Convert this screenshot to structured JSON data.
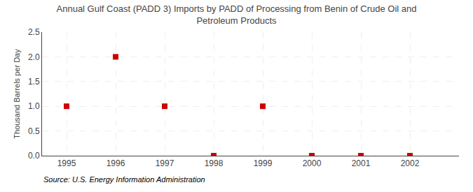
{
  "chart_data": {
    "type": "scatter",
    "title": "Annual Gulf Coast (PADD 3) Imports by PADD of Processing from Benin of Crude Oil and\nPetroleum Products",
    "y_label": "Thousand Barrels per Day",
    "annotations": [
      "Source: U.S. Energy Information Administration"
    ],
    "x": [
      1995,
      1996,
      1997,
      1998,
      1999,
      2000,
      2001,
      2002
    ],
    "values": [
      1.0,
      2.0,
      1.0,
      0.0,
      1.0,
      0.0,
      0.0,
      0.0
    ],
    "color": "#cc0000",
    "marker": "square",
    "xlim": [
      1994.5,
      2003.0
    ],
    "xticks": [
      1995,
      1996,
      1997,
      1998,
      1999,
      2000,
      2001,
      2002
    ],
    "ylim": [
      0.0,
      2.5
    ],
    "yticks": [
      {
        "value": 0.0,
        "label": "0.0"
      },
      0.5,
      {
        "value": 1.0,
        "label": "1.0"
      },
      1.5,
      {
        "value": 2.0,
        "label": "2.0"
      },
      2.5
    ],
    "grid": true
  }
}
